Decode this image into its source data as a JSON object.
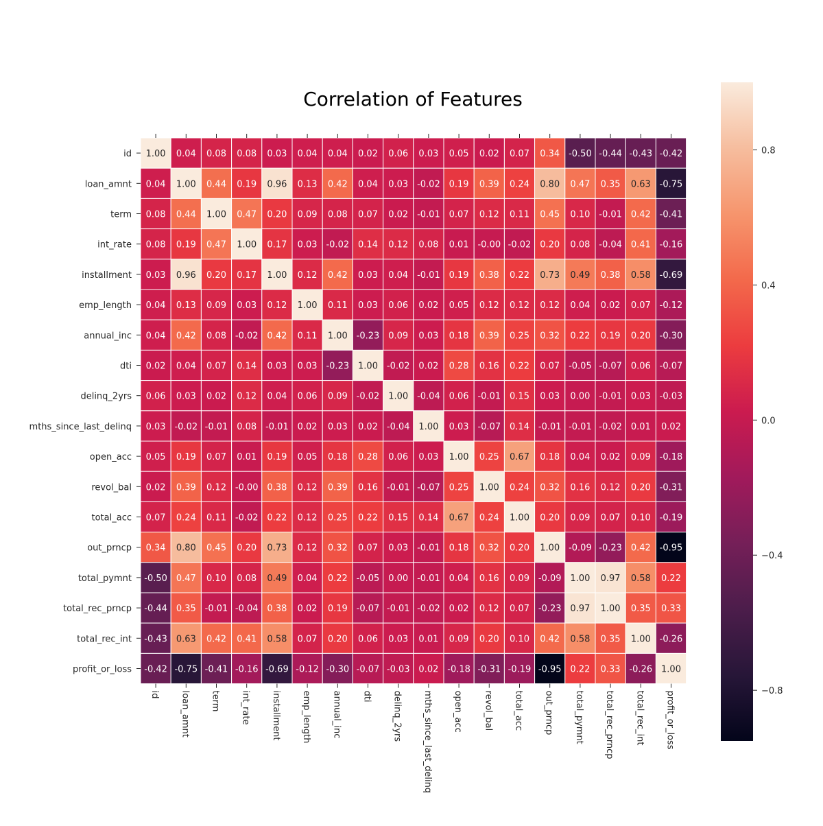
{
  "chart_data": {
    "type": "heatmap",
    "title": "Correlation of Features",
    "x_labels": [
      "id",
      "loan_amnt",
      "term",
      "int_rate",
      "installment",
      "emp_length",
      "annual_inc",
      "dti",
      "delinq_2yrs",
      "mths_since_last_delinq",
      "open_acc",
      "revol_bal",
      "total_acc",
      "out_prncp",
      "total_pymnt",
      "total_rec_prncp",
      "total_rec_int",
      "profit_or_loss"
    ],
    "y_labels": [
      "id",
      "loan_amnt",
      "term",
      "int_rate",
      "installment",
      "emp_length",
      "annual_inc",
      "dti",
      "delinq_2yrs",
      "mths_since_last_delinq",
      "open_acc",
      "revol_bal",
      "total_acc",
      "out_prncp",
      "total_pymnt",
      "total_rec_prncp",
      "total_rec_int",
      "profit_or_loss"
    ],
    "values": [
      [
        "1.00",
        "0.04",
        "0.08",
        "0.08",
        "0.03",
        "0.04",
        "0.04",
        "0.02",
        "0.06",
        "0.03",
        "0.05",
        "0.02",
        "0.07",
        "0.34",
        "-0.50",
        "-0.44",
        "-0.43",
        "-0.42"
      ],
      [
        "0.04",
        "1.00",
        "0.44",
        "0.19",
        "0.96",
        "0.13",
        "0.42",
        "0.04",
        "0.03",
        "-0.02",
        "0.19",
        "0.39",
        "0.24",
        "0.80",
        "0.47",
        "0.35",
        "0.63",
        "-0.75"
      ],
      [
        "0.08",
        "0.44",
        "1.00",
        "0.47",
        "0.20",
        "0.09",
        "0.08",
        "0.07",
        "0.02",
        "-0.01",
        "0.07",
        "0.12",
        "0.11",
        "0.45",
        "0.10",
        "-0.01",
        "0.42",
        "-0.41"
      ],
      [
        "0.08",
        "0.19",
        "0.47",
        "1.00",
        "0.17",
        "0.03",
        "-0.02",
        "0.14",
        "0.12",
        "0.08",
        "0.01",
        "-0.00",
        "-0.02",
        "0.20",
        "0.08",
        "-0.04",
        "0.41",
        "-0.16"
      ],
      [
        "0.03",
        "0.96",
        "0.20",
        "0.17",
        "1.00",
        "0.12",
        "0.42",
        "0.03",
        "0.04",
        "-0.01",
        "0.19",
        "0.38",
        "0.22",
        "0.73",
        "0.49",
        "0.38",
        "0.58",
        "-0.69"
      ],
      [
        "0.04",
        "0.13",
        "0.09",
        "0.03",
        "0.12",
        "1.00",
        "0.11",
        "0.03",
        "0.06",
        "0.02",
        "0.05",
        "0.12",
        "0.12",
        "0.12",
        "0.04",
        "0.02",
        "0.07",
        "-0.12"
      ],
      [
        "0.04",
        "0.42",
        "0.08",
        "-0.02",
        "0.42",
        "0.11",
        "1.00",
        "-0.23",
        "0.09",
        "0.03",
        "0.18",
        "0.39",
        "0.25",
        "0.32",
        "0.22",
        "0.19",
        "0.20",
        "-0.30"
      ],
      [
        "0.02",
        "0.04",
        "0.07",
        "0.14",
        "0.03",
        "0.03",
        "-0.23",
        "1.00",
        "-0.02",
        "0.02",
        "0.28",
        "0.16",
        "0.22",
        "0.07",
        "-0.05",
        "-0.07",
        "0.06",
        "-0.07"
      ],
      [
        "0.06",
        "0.03",
        "0.02",
        "0.12",
        "0.04",
        "0.06",
        "0.09",
        "-0.02",
        "1.00",
        "-0.04",
        "0.06",
        "-0.01",
        "0.15",
        "0.03",
        "0.00",
        "-0.01",
        "0.03",
        "-0.03"
      ],
      [
        "0.03",
        "-0.02",
        "-0.01",
        "0.08",
        "-0.01",
        "0.02",
        "0.03",
        "0.02",
        "-0.04",
        "1.00",
        "0.03",
        "-0.07",
        "0.14",
        "-0.01",
        "-0.01",
        "-0.02",
        "0.01",
        "0.02"
      ],
      [
        "0.05",
        "0.19",
        "0.07",
        "0.01",
        "0.19",
        "0.05",
        "0.18",
        "0.28",
        "0.06",
        "0.03",
        "1.00",
        "0.25",
        "0.67",
        "0.18",
        "0.04",
        "0.02",
        "0.09",
        "-0.18"
      ],
      [
        "0.02",
        "0.39",
        "0.12",
        "-0.00",
        "0.38",
        "0.12",
        "0.39",
        "0.16",
        "-0.01",
        "-0.07",
        "0.25",
        "1.00",
        "0.24",
        "0.32",
        "0.16",
        "0.12",
        "0.20",
        "-0.31"
      ],
      [
        "0.07",
        "0.24",
        "0.11",
        "-0.02",
        "0.22",
        "0.12",
        "0.25",
        "0.22",
        "0.15",
        "0.14",
        "0.67",
        "0.24",
        "1.00",
        "0.20",
        "0.09",
        "0.07",
        "0.10",
        "-0.19"
      ],
      [
        "0.34",
        "0.80",
        "0.45",
        "0.20",
        "0.73",
        "0.12",
        "0.32",
        "0.07",
        "0.03",
        "-0.01",
        "0.18",
        "0.32",
        "0.20",
        "1.00",
        "-0.09",
        "-0.23",
        "0.42",
        "-0.95"
      ],
      [
        "-0.50",
        "0.47",
        "0.10",
        "0.08",
        "0.49",
        "0.04",
        "0.22",
        "-0.05",
        "0.00",
        "-0.01",
        "0.04",
        "0.16",
        "0.09",
        "-0.09",
        "1.00",
        "0.97",
        "0.58",
        "0.22"
      ],
      [
        "-0.44",
        "0.35",
        "-0.01",
        "-0.04",
        "0.38",
        "0.02",
        "0.19",
        "-0.07",
        "-0.01",
        "-0.02",
        "0.02",
        "0.12",
        "0.07",
        "-0.23",
        "0.97",
        "1.00",
        "0.35",
        "0.33"
      ],
      [
        "-0.43",
        "0.63",
        "0.42",
        "0.41",
        "0.58",
        "0.07",
        "0.20",
        "0.06",
        "0.03",
        "0.01",
        "0.09",
        "0.20",
        "0.10",
        "0.42",
        "0.58",
        "0.35",
        "1.00",
        "-0.26"
      ],
      [
        "-0.42",
        "-0.75",
        "-0.41",
        "-0.16",
        "-0.69",
        "-0.12",
        "-0.30",
        "-0.07",
        "-0.03",
        "0.02",
        "-0.18",
        "-0.31",
        "-0.19",
        "-0.95",
        "0.22",
        "0.33",
        "-0.26",
        "1.00"
      ]
    ],
    "value_range": [
      -0.95,
      1.0
    ],
    "colormap": "rocket",
    "colorbar": {
      "ticks": [
        0.8,
        0.4,
        0.0,
        -0.4,
        -0.8
      ],
      "tick_labels": [
        "0.8",
        "0.4",
        "0.0",
        "−0.4",
        "−0.8"
      ]
    },
    "grid": true,
    "cell_separator_color": "#ffffff"
  }
}
